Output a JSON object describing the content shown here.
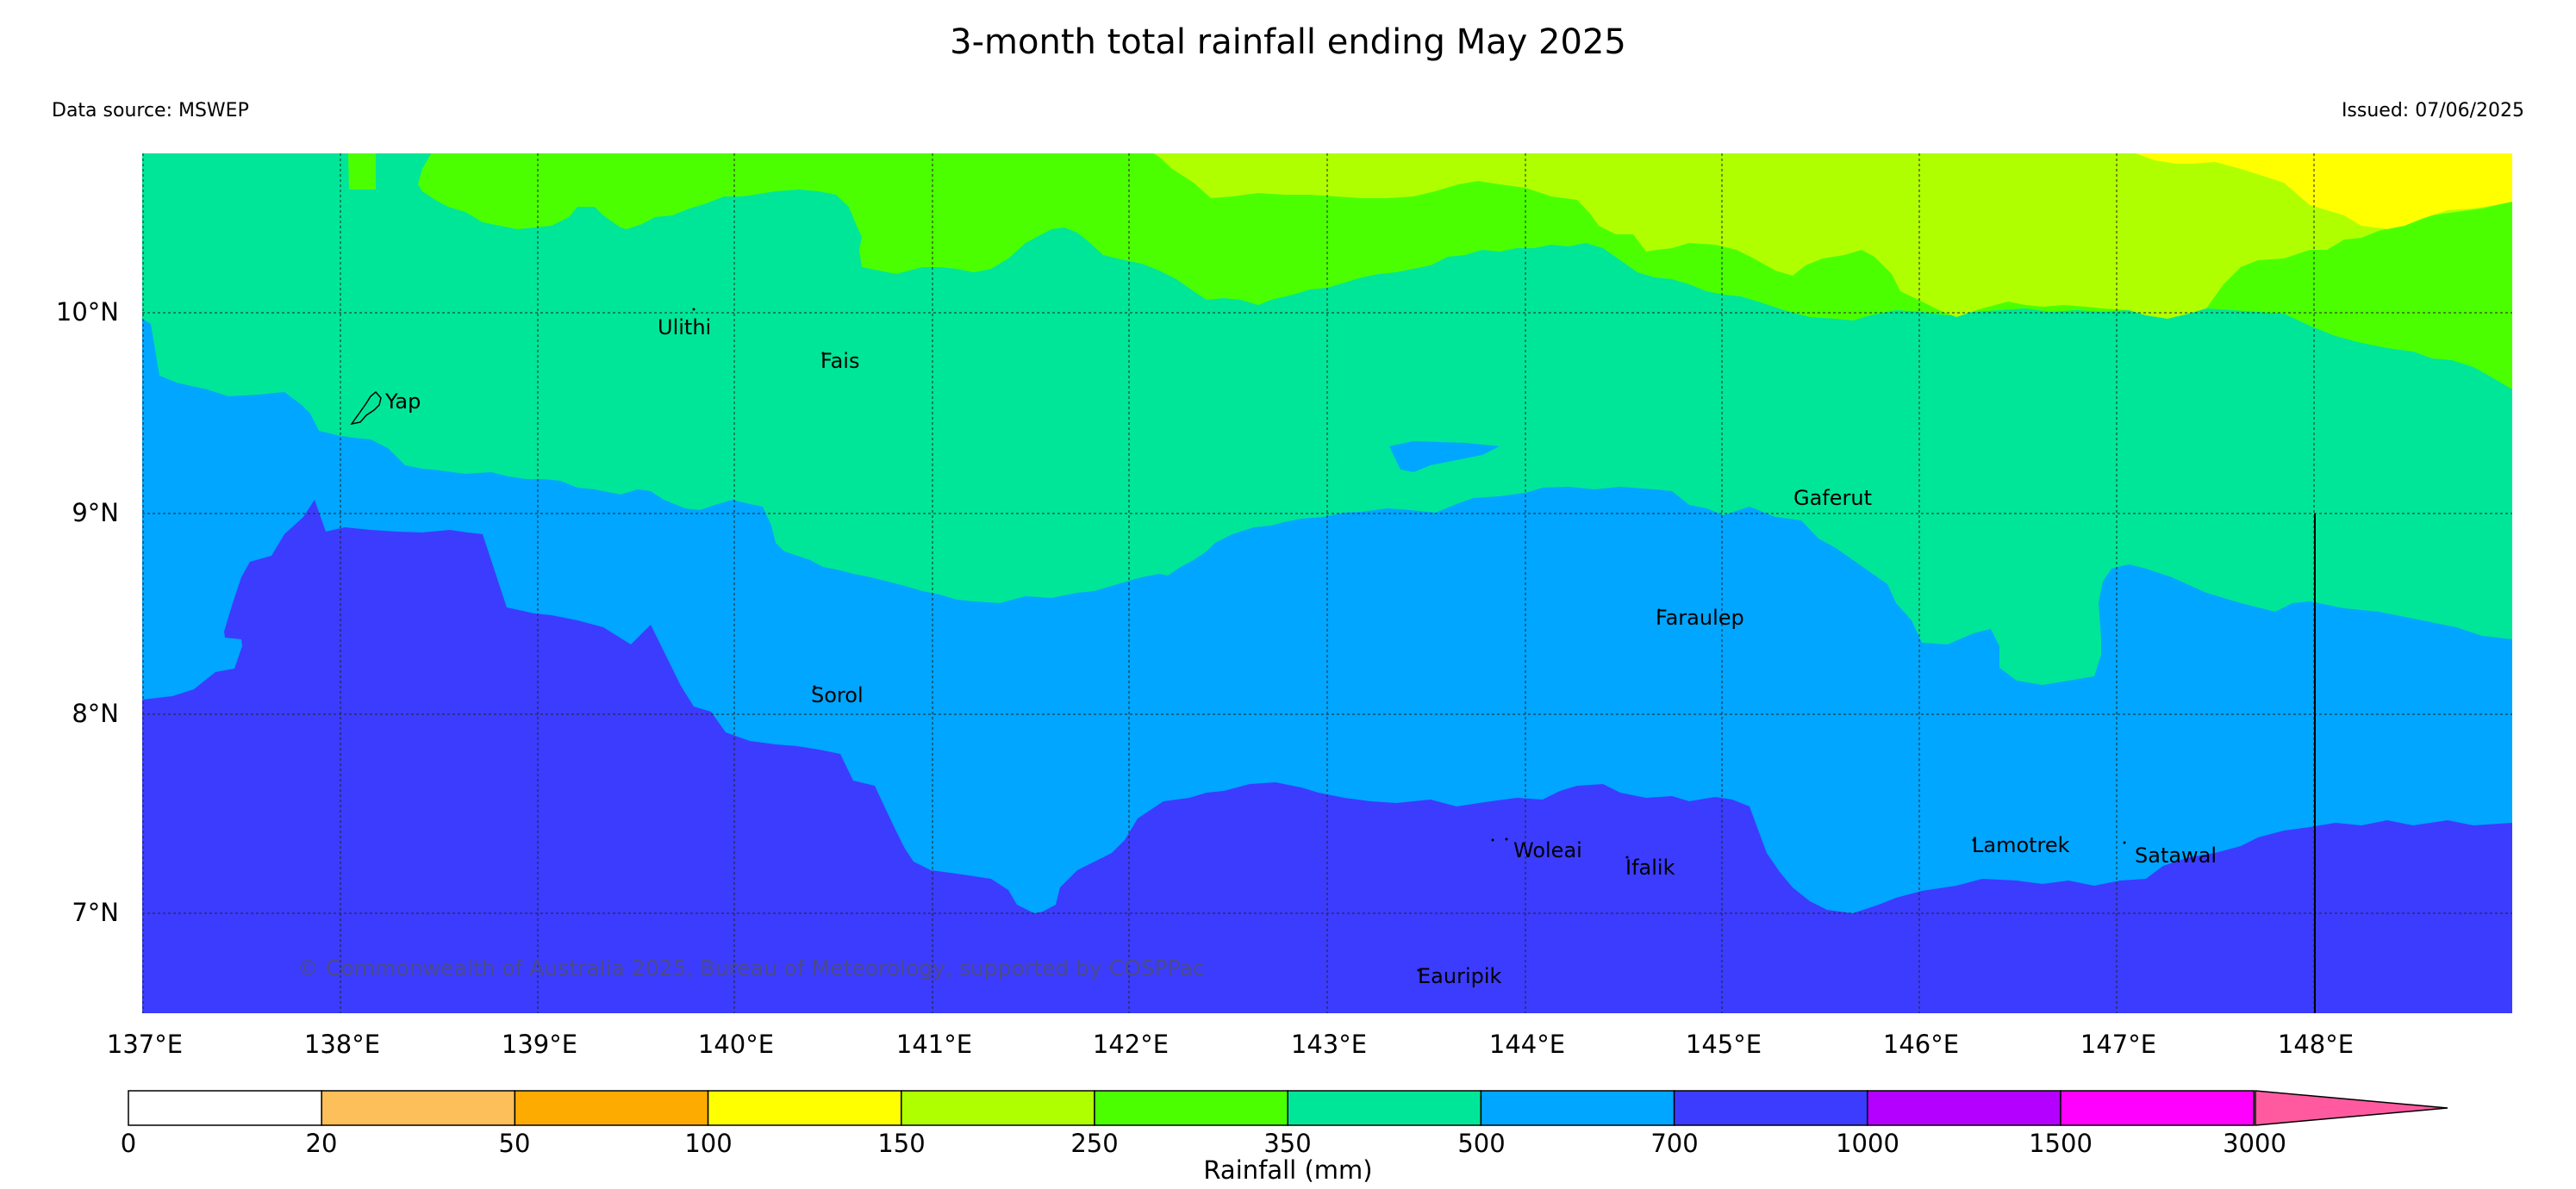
{
  "header": {
    "title": "3-month total rainfall ending May 2025",
    "data_source": "Data source: MSWEP",
    "issued": "Issued: 07/06/2025"
  },
  "map": {
    "latitude_labels": [
      "10°N",
      "9°N",
      "8°N",
      "7°N"
    ],
    "longitude_labels": [
      "137°E",
      "138°E",
      "139°E",
      "140°E",
      "141°E",
      "142°E",
      "143°E",
      "144°E",
      "145°E",
      "146°E",
      "147°E",
      "148°E"
    ],
    "places": [
      {
        "name": "Ulithi"
      },
      {
        "name": "Fais"
      },
      {
        "name": "Yap"
      },
      {
        "name": "Gaferut"
      },
      {
        "name": "Faraulep"
      },
      {
        "name": "Sorol"
      },
      {
        "name": "Woleai"
      },
      {
        "name": "Ifalik"
      },
      {
        "name": "Lamotrek"
      },
      {
        "name": "Satawal"
      },
      {
        "name": "Eauripik"
      }
    ],
    "copyright": "© Commonwealth of Australia 2025, Bureau of Meteorology, supported by COSPPac"
  },
  "colorbar": {
    "label": "Rainfall (mm)",
    "ticks": [
      "0",
      "20",
      "50",
      "100",
      "150",
      "250",
      "350",
      "500",
      "700",
      "1000",
      "1500",
      "3000"
    ],
    "colors": [
      "#ffffff",
      "#fdbf5a",
      "#fdab00",
      "#ffff00",
      "#b0ff00",
      "#4cff00",
      "#00e699",
      "#00a6ff",
      "#3c3cff",
      "#b400ff",
      "#ff00ff",
      "#ff5aa0"
    ]
  }
}
